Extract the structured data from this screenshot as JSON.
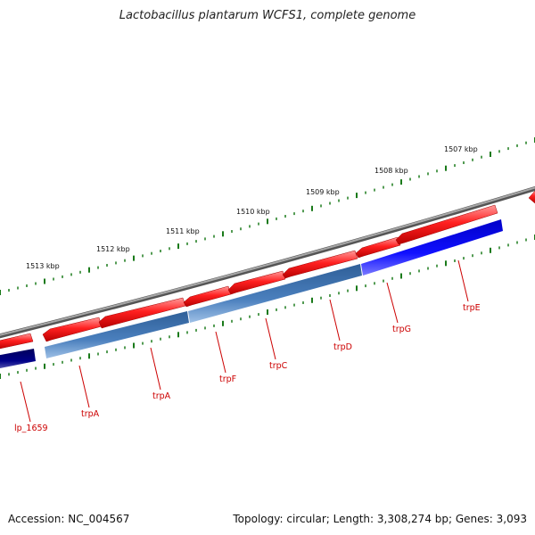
{
  "title": "Lactobacillus plantarum WCFS1, complete genome",
  "footer": {
    "accession": "Accession: NC_004567",
    "summary": "Topology: circular; Length: 3,308,274 bp; Genes: 3,093"
  },
  "ruler": {
    "labels": [
      "1507 kbp",
      "1508 kbp",
      "1509 kbp",
      "1510 kbp",
      "1511 kbp",
      "1512 kbp",
      "1513 kbp"
    ]
  },
  "genes": {
    "labels": [
      "lp_1659",
      "trpA",
      "trpA",
      "trpF",
      "trpC",
      "trpD",
      "trpG",
      "trpE"
    ]
  },
  "colors": {
    "backbone": "#808080",
    "forward_gene": "#e00000",
    "cds_dark": "#00007a",
    "cds_steel": "#3f6fa8",
    "cds_blue": "#0000e8",
    "tick": "#1a7a1a",
    "label": "#cc0000"
  }
}
